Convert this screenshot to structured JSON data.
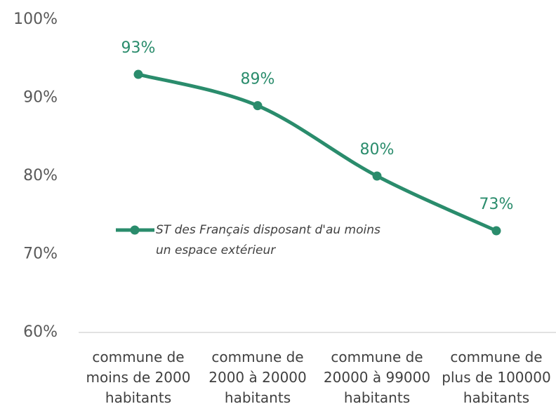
{
  "chart_data": {
    "type": "line",
    "categories": [
      "commune de moins de 2000 habitants",
      "commune de 2000 à 20000 habitants",
      "commune de 20000 à 99000 habitants",
      "commune de plus de 100000 habitants"
    ],
    "series": [
      {
        "name": "ST des Français disposant d'au moins un espace extérieur",
        "color": "#2a8c6c",
        "values": [
          93,
          89,
          80,
          73
        ],
        "value_labels": [
          "93%",
          "89%",
          "80%",
          "73%"
        ]
      }
    ],
    "ylim": [
      60,
      100
    ],
    "yticks": [
      {
        "value": 60,
        "label": "60%"
      },
      {
        "value": 70,
        "label": "70%"
      },
      {
        "value": 80,
        "label": "80%"
      },
      {
        "value": 90,
        "label": "90%"
      },
      {
        "value": 100,
        "label": "100%"
      }
    ],
    "grid": false,
    "smooth": true,
    "legend": "inside"
  }
}
